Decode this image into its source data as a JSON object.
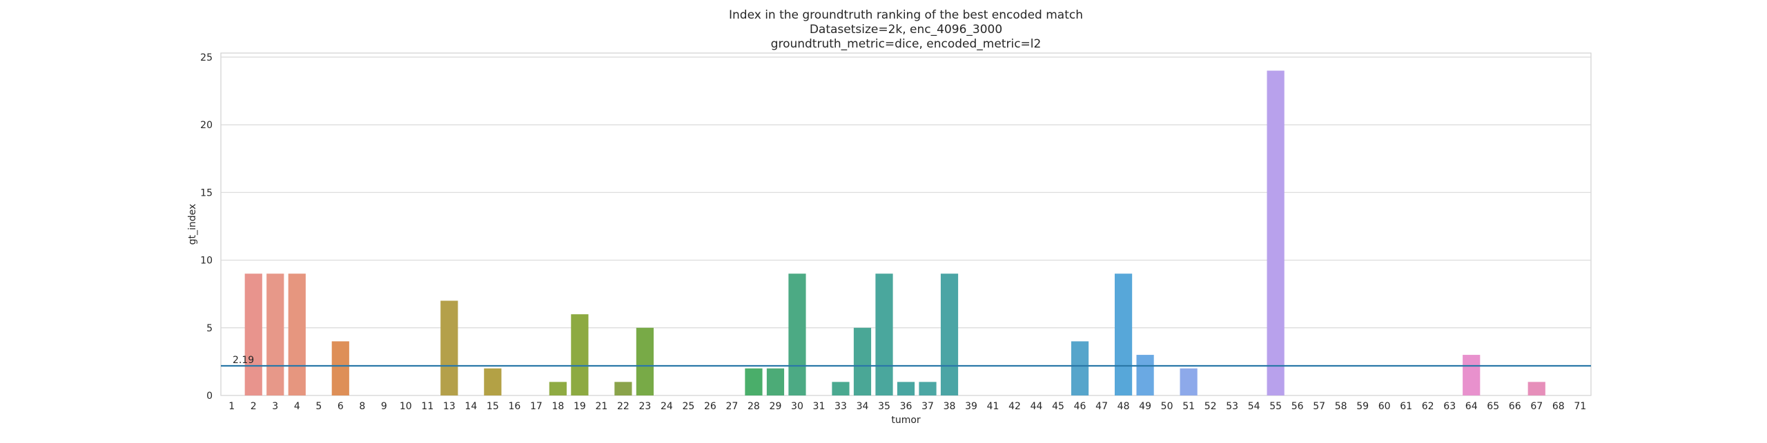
{
  "chart_data": {
    "type": "bar",
    "title_lines": [
      "Index in the groundtruth ranking of the best encoded match",
      "Datasetsize=2k, enc_4096_3000",
      "groundtruth_metric=dice, encoded_metric=l2"
    ],
    "xlabel": "tumor",
    "ylabel": "gt_index",
    "ylim": [
      0,
      25.3
    ],
    "yticks": [
      0,
      5,
      10,
      15,
      20,
      25
    ],
    "grid": true,
    "categories": [
      "1",
      "2",
      "3",
      "4",
      "5",
      "6",
      "8",
      "9",
      "10",
      "11",
      "13",
      "14",
      "15",
      "16",
      "17",
      "18",
      "19",
      "21",
      "22",
      "23",
      "24",
      "25",
      "26",
      "27",
      "28",
      "29",
      "30",
      "31",
      "33",
      "34",
      "35",
      "36",
      "37",
      "38",
      "39",
      "41",
      "42",
      "44",
      "45",
      "46",
      "47",
      "48",
      "49",
      "50",
      "51",
      "52",
      "53",
      "54",
      "55",
      "56",
      "57",
      "58",
      "59",
      "60",
      "61",
      "62",
      "63",
      "64",
      "65",
      "66",
      "67",
      "68",
      "71"
    ],
    "values": [
      0,
      9,
      9,
      9,
      0,
      4,
      0,
      0,
      0,
      0,
      7,
      0,
      2,
      0,
      0,
      1,
      6,
      0,
      1,
      5,
      0,
      0,
      0,
      0,
      2,
      2,
      9,
      0,
      1,
      5,
      9,
      1,
      1,
      9,
      0,
      0,
      0,
      0,
      0,
      4,
      0,
      9,
      3,
      0,
      2,
      0,
      0,
      0,
      24,
      0,
      0,
      0,
      0,
      0,
      0,
      0,
      0,
      3,
      0,
      0,
      1,
      0,
      0
    ],
    "colors": [
      "#ea969a",
      "#e8948d",
      "#e79889",
      "#e6967f",
      "#e3945f",
      "#de8f57",
      "#d59a4f",
      "#cca14a",
      "#c2a649",
      "#b9a848",
      "#b4a04a",
      "#a9a64a",
      "#b3a145",
      "#a6a645",
      "#9aa944",
      "#8fab43",
      "#8daa41",
      "#82ae43",
      "#8aa34a",
      "#78aa47",
      "#6bb049",
      "#61b14c",
      "#57b253",
      "#4fb359",
      "#4aae6a",
      "#4cab77",
      "#4caa84",
      "#49aa8b",
      "#4aa990",
      "#4aa796",
      "#4aa79d",
      "#49a6a1",
      "#4ca7a4",
      "#4ba5a5",
      "#4da6ad",
      "#4ea6b2",
      "#50a5b7",
      "#52a4bc",
      "#55a3c1",
      "#56a5cb",
      "#57a5d2",
      "#57a7d9",
      "#6aa9e3",
      "#77a6e8",
      "#8da9ea",
      "#9ea8ec",
      "#aaa6ef",
      "#b39ff0",
      "#b8a1ec",
      "#c29bea",
      "#ca98e6",
      "#d094e2",
      "#d88fdd",
      "#df8ad7",
      "#e487cf",
      "#e489c8",
      "#e68ac3",
      "#e891cd",
      "#ea8fc0",
      "#ea8db5",
      "#e68fba",
      "#ea90b0",
      "#ea91a5"
    ],
    "hline": {
      "value": 2.19,
      "label": "2.19",
      "color": "#2a78a8"
    }
  }
}
